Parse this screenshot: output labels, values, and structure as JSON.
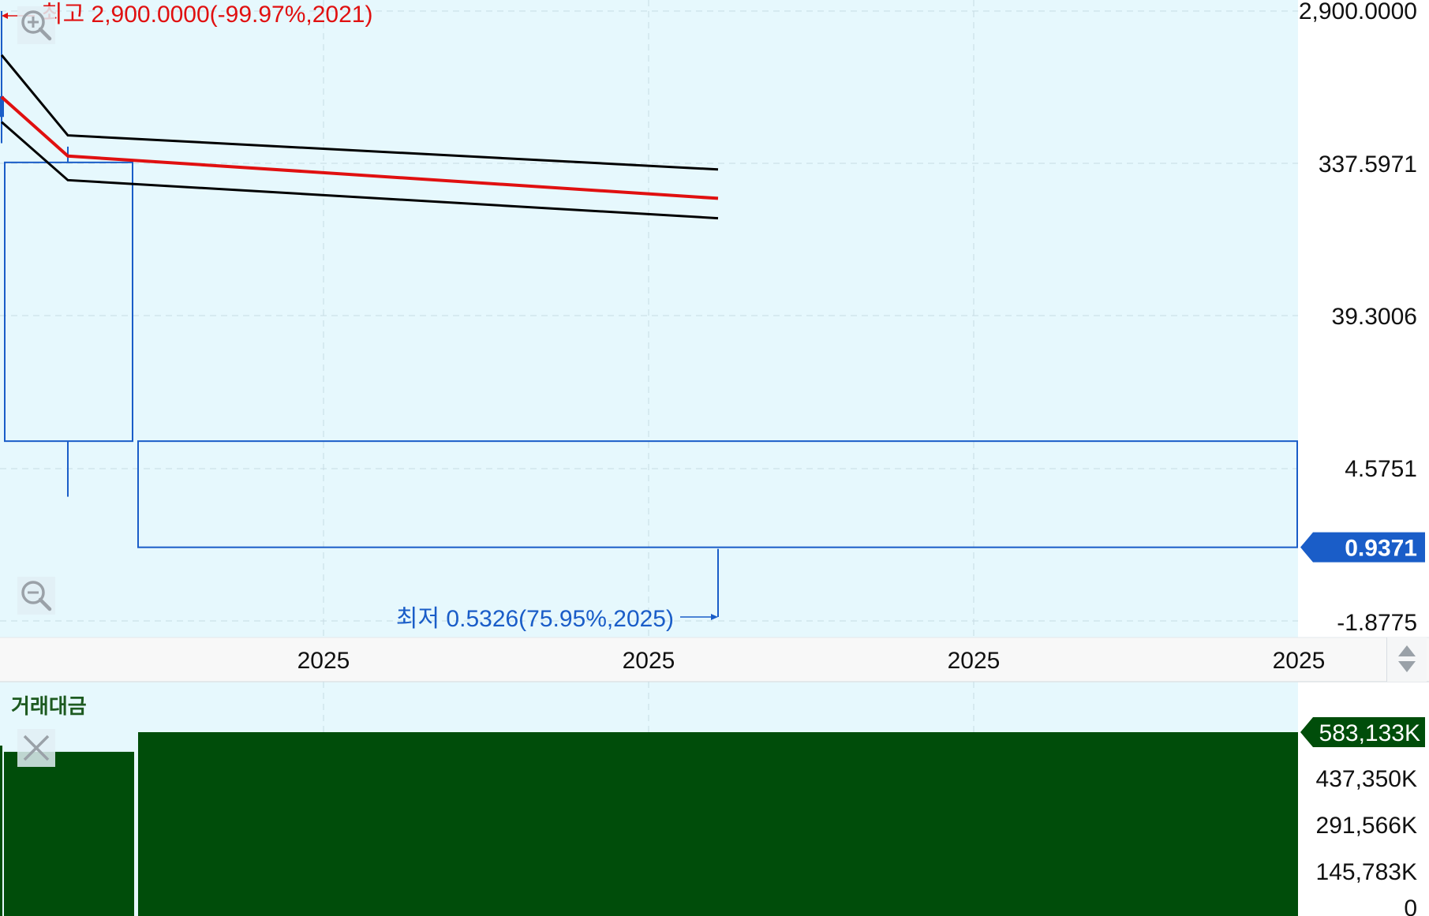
{
  "chart_data": [
    {
      "type": "candlestick",
      "y_scale": "log",
      "y_ticks": [
        "2,900.0000",
        "337.5971",
        "39.3006",
        "4.5751",
        "-1.8775"
      ],
      "x_ticks": [
        "2025",
        "2025",
        "2025",
        "2025"
      ],
      "candles": [
        {
          "open": 800,
          "high": 2900,
          "low": 400,
          "close": 600,
          "filled": true
        },
        {
          "open": 300,
          "high": 380,
          "low": 2.0,
          "close": 4.6
        },
        {
          "open": 4.6,
          "high": 4.6,
          "low": 0.5326,
          "close": 0.9371
        }
      ],
      "bands": [
        {
          "name": "upper",
          "color": "#000000",
          "values": [
            1500,
            450,
            270
          ]
        },
        {
          "name": "middle",
          "color": "#e01010",
          "values": [
            800,
            330,
            175
          ]
        },
        {
          "name": "lower",
          "color": "#000000",
          "values": [
            550,
            230,
            130
          ]
        }
      ],
      "annotations": {
        "high": {
          "text": "최고 2,900.0000(-99.97%,2021)",
          "value": 2900,
          "color": "#e01010"
        },
        "low": {
          "text": "최저 0.5326(75.95%,2025)",
          "value": 0.5326,
          "color": "#1a5dc8"
        }
      },
      "current_price": {
        "label": "0.9371",
        "value": 0.9371,
        "color": "#1a5dc8"
      }
    },
    {
      "type": "bar",
      "title": "거래대금",
      "y_ticks": [
        "583,133K",
        "437,350K",
        "291,566K",
        "145,783K",
        "0"
      ],
      "ylim": [
        0,
        583133
      ],
      "values": [
        520000,
        583133
      ],
      "current_label": "583,133K",
      "bar_color": "#004d0a"
    }
  ]
}
